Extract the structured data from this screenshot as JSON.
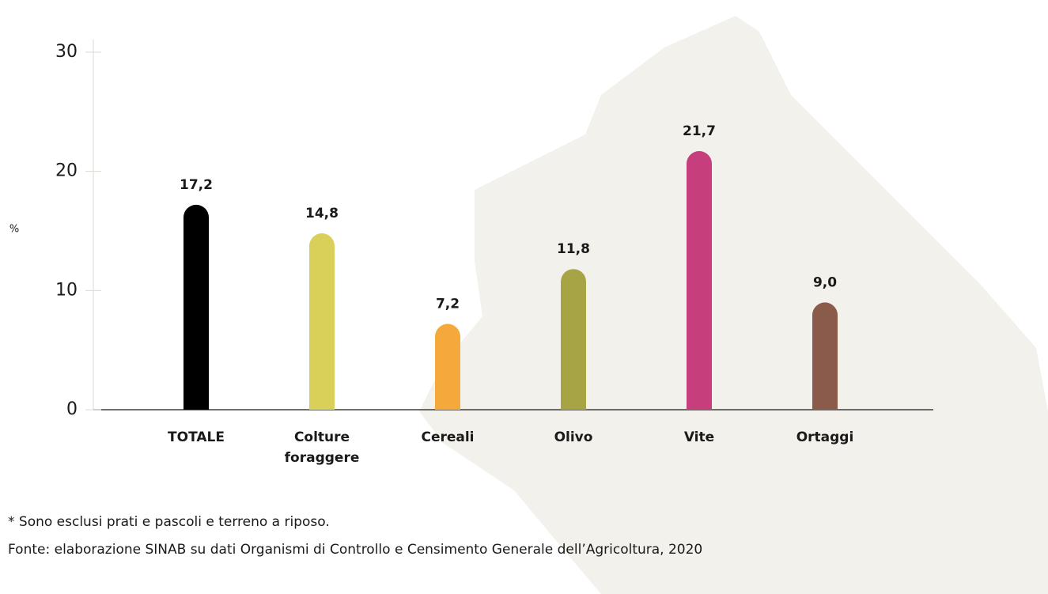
{
  "chart_data": {
    "type": "bar",
    "y_label": "%",
    "categories": [
      "TOTALE",
      "Colture foraggere",
      "Cereali",
      "Olivo",
      "Vite",
      "Ortaggi"
    ],
    "values": [
      17.2,
      14.8,
      7.2,
      11.8,
      21.7,
      9.0
    ],
    "value_labels": [
      "17,2",
      "14,8",
      "7,2",
      "11,8",
      "21,7",
      "9,0"
    ],
    "colors": [
      "#000000",
      "#d9d05a",
      "#f5a93a",
      "#a6a444",
      "#c63e7c",
      "#8a5a4b"
    ],
    "ylim": [
      0,
      30
    ],
    "yticks": [
      0,
      10,
      20,
      30
    ],
    "notes": [
      "* Sono esclusi prati e pascoli e terreno a riposo.",
      "Fonte: elaborazione SINAB su dati Organismi di Controllo e Censimento Generale dell’Agricoltura, 2020"
    ]
  }
}
